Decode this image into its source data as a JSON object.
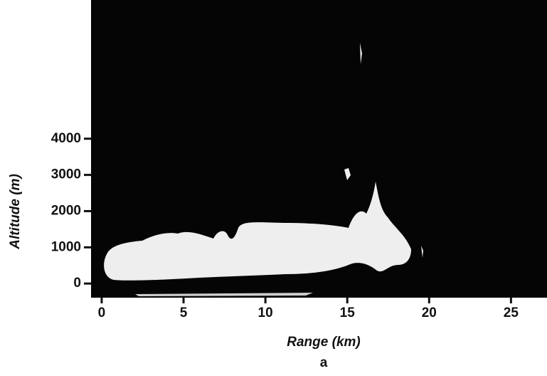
{
  "chart_data": {
    "type": "image",
    "xlabel": "Range (km)",
    "ylabel": "Altitude (m)",
    "caption": "a",
    "xlim": [
      -0.65,
      27.2
    ],
    "ylim": [
      -390,
      7830
    ],
    "xticks": [
      0,
      5,
      10,
      15,
      20,
      25
    ],
    "yticks": [
      0,
      1000,
      2000,
      3000,
      4000
    ]
  }
}
